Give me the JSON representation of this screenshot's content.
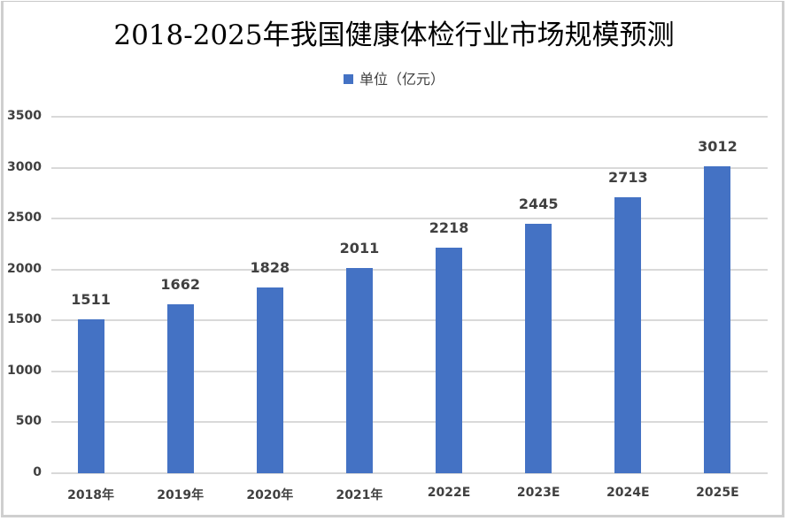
{
  "chart_data": {
    "type": "bar",
    "title": "2018-2025年我国健康体检行业市场规模预测",
    "legend": [
      "单位（亿元）"
    ],
    "legend_position": "top",
    "categories": [
      "2018年",
      "2019年",
      "2020年",
      "2021年",
      "2022E",
      "2023E",
      "2024E",
      "2025E"
    ],
    "series": [
      {
        "name": "单位（亿元）",
        "values": [
          1511,
          1662,
          1828,
          2011,
          2218,
          2445,
          2713,
          3012
        ],
        "color": "#4472c4"
      }
    ],
    "value_labels": [
      "1511",
      "1662",
      "1828",
      "2011",
      "2218",
      "2445",
      "2713",
      "3012"
    ],
    "xlabel": "",
    "ylabel": "",
    "ylim": [
      0,
      3500
    ],
    "yticks": [
      "0",
      "500",
      "1000",
      "1500",
      "2000",
      "2500",
      "3000",
      "3500"
    ],
    "grid": true
  }
}
